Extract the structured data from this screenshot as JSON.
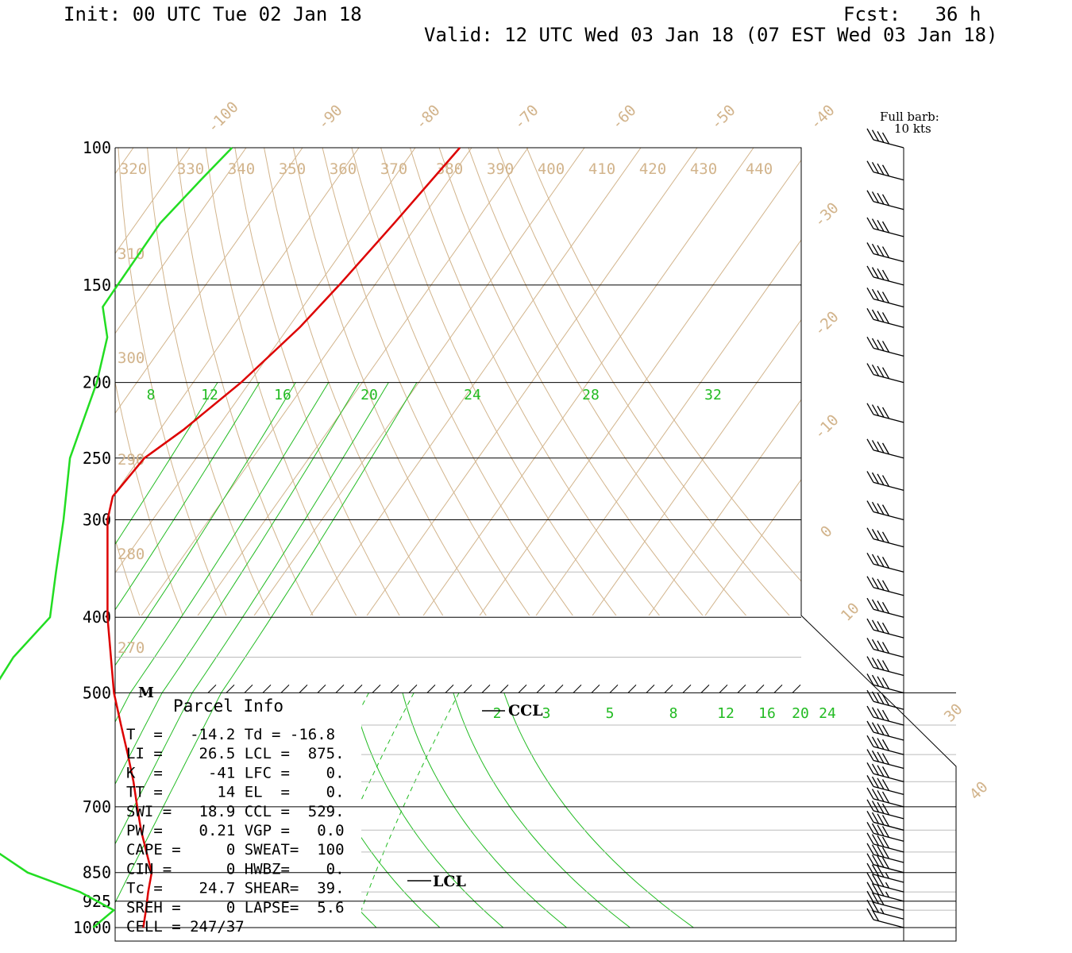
{
  "header": {
    "init": "Init: 00 UTC Tue 02 Jan 18",
    "fcst": "Fcst:   36 h",
    "valid": "Valid: 12 UTC Wed 03 Jan 18 (07 EST Wed 03 Jan 18)"
  },
  "barb_key": {
    "line1": "Full barb:",
    "line2": "10 kts"
  },
  "colors": {
    "temperature": "#dd0000",
    "dewpoint": "#22dd22",
    "grid": "#d2b48c",
    "mixing": "#22bb22"
  },
  "labels": {
    "pressure": [
      "100",
      "150",
      "200",
      "250",
      "300",
      "400",
      "500",
      "700",
      "850",
      "925",
      "1000"
    ],
    "isotherms_top": [
      "-100",
      "-90",
      "-80",
      "-70",
      "-60",
      "-50",
      "-40"
    ],
    "isotherms_right": [
      "-30",
      "-20",
      "-10",
      "0",
      "10",
      "30",
      "40"
    ],
    "theta_top": [
      "320",
      "330",
      "340",
      "350",
      "360",
      "370",
      "380",
      "390",
      "400",
      "410",
      "420",
      "430",
      "440"
    ],
    "theta_left": [
      "310",
      "300",
      "290",
      "280",
      "270"
    ],
    "mix_upper": [
      "8",
      "12",
      "16",
      "20",
      "24",
      "28",
      "32"
    ],
    "mix_lower": [
      "2",
      "3",
      "5",
      "8",
      "12",
      "16",
      "20",
      "24"
    ],
    "ccl": "CCL",
    "lcl": "LCL",
    "m": "M"
  },
  "parcel_info": {
    "title": "Parcel Info",
    "rows": [
      "T  =   -14.2 Td = -16.8",
      "LI =    26.5 LCL =  875.",
      "K  =     -41 LFC =    0.",
      "TT =      14 EL  =    0.",
      "SWI =   18.9 CCL =  529.",
      "PW =    0.21 VGP =   0.0",
      "CAPE =     0 SWEAT=  100",
      "CIN =      0 HWBZ=    0.",
      "Tc =    24.7 SHEAR=  39.",
      "SREH =     0 LAPSE=  5.6",
      "CELL = 247/37"
    ]
  },
  "chart_data": {
    "type": "line",
    "title": "",
    "y_axis": "pressure (mb)",
    "ylim": [
      1000,
      100
    ],
    "series": [
      {
        "name": "Temperature",
        "points": [
          {
            "p": 1000,
            "t": -10.6
          },
          {
            "p": 950,
            "t": -12.3
          },
          {
            "p": 900,
            "t": -14.2
          },
          {
            "p": 850,
            "t": -16.0
          },
          {
            "p": 800,
            "t": -19.5
          },
          {
            "p": 750,
            "t": -23.2
          },
          {
            "p": 700,
            "t": -26.8
          },
          {
            "p": 650,
            "t": -30.6
          },
          {
            "p": 600,
            "t": -35.0
          },
          {
            "p": 550,
            "t": -39.9
          },
          {
            "p": 500,
            "t": -45.2
          },
          {
            "p": 400,
            "t": -55.8
          },
          {
            "p": 300,
            "t": -68.0
          },
          {
            "p": 280,
            "t": -70.0
          },
          {
            "p": 250,
            "t": -69.2
          },
          {
            "p": 230,
            "t": -65.8
          },
          {
            "p": 200,
            "t": -61.5
          },
          {
            "p": 170,
            "t": -58.0
          },
          {
            "p": 150,
            "t": -56.3
          },
          {
            "p": 125,
            "t": -54.3
          },
          {
            "p": 100,
            "t": -52.1
          }
        ]
      },
      {
        "name": "Dewpoint",
        "points": [
          {
            "p": 1000,
            "t": -19.5
          },
          {
            "p": 950,
            "t": -18.0
          },
          {
            "p": 900,
            "t": -26.3
          },
          {
            "p": 850,
            "t": -38.0
          },
          {
            "p": 800,
            "t": -46.0
          },
          {
            "p": 750,
            "t": -50.5
          },
          {
            "p": 700,
            "t": -54.7
          },
          {
            "p": 650,
            "t": -58.5
          },
          {
            "p": 600,
            "t": -61.6
          },
          {
            "p": 550,
            "t": -64.5
          },
          {
            "p": 500,
            "t": -67.0
          },
          {
            "p": 450,
            "t": -67.5
          },
          {
            "p": 400,
            "t": -66.0
          },
          {
            "p": 350,
            "t": -70.6
          },
          {
            "p": 300,
            "t": -75.8
          },
          {
            "p": 250,
            "t": -82.4
          },
          {
            "p": 200,
            "t": -87.1
          },
          {
            "p": 175,
            "t": -90.9
          },
          {
            "p": 160,
            "t": -95.5
          },
          {
            "p": 150,
            "t": -95.6
          },
          {
            "p": 125,
            "t": -95.8
          },
          {
            "p": 110,
            "t": -94.0
          },
          {
            "p": 100,
            "t": -92.5
          }
        ]
      }
    ],
    "wind_barbs": {
      "unit": "kts",
      "barbs": [
        {
          "p": 1000,
          "speed": 20
        },
        {
          "p": 975,
          "speed": 25
        },
        {
          "p": 950,
          "speed": 30
        },
        {
          "p": 925,
          "speed": 35
        },
        {
          "p": 900,
          "speed": 35
        },
        {
          "p": 875,
          "speed": 35
        },
        {
          "p": 850,
          "speed": 40
        },
        {
          "p": 825,
          "speed": 40
        },
        {
          "p": 800,
          "speed": 40
        },
        {
          "p": 775,
          "speed": 40
        },
        {
          "p": 750,
          "speed": 40
        },
        {
          "p": 725,
          "speed": 40
        },
        {
          "p": 700,
          "speed": 40
        },
        {
          "p": 675,
          "speed": 40
        },
        {
          "p": 650,
          "speed": 40
        },
        {
          "p": 625,
          "speed": 40
        },
        {
          "p": 600,
          "speed": 40
        },
        {
          "p": 575,
          "speed": 40
        },
        {
          "p": 550,
          "speed": 40
        },
        {
          "p": 525,
          "speed": 40
        },
        {
          "p": 500,
          "speed": 40
        },
        {
          "p": 475,
          "speed": 40
        },
        {
          "p": 450,
          "speed": 40
        },
        {
          "p": 425,
          "speed": 40
        },
        {
          "p": 400,
          "speed": 40
        },
        {
          "p": 375,
          "speed": 40
        },
        {
          "p": 350,
          "speed": 40
        },
        {
          "p": 325,
          "speed": 40
        },
        {
          "p": 300,
          "speed": 40
        },
        {
          "p": 275,
          "speed": 40
        },
        {
          "p": 250,
          "speed": 40
        },
        {
          "p": 225,
          "speed": 40
        },
        {
          "p": 200,
          "speed": 40
        },
        {
          "p": 185,
          "speed": 40
        },
        {
          "p": 170,
          "speed": 40
        },
        {
          "p": 160,
          "speed": 40
        },
        {
          "p": 150,
          "speed": 40
        },
        {
          "p": 140,
          "speed": 40
        },
        {
          "p": 130,
          "speed": 40
        },
        {
          "p": 120,
          "speed": 40
        },
        {
          "p": 110,
          "speed": 40
        },
        {
          "p": 100,
          "speed": 40
        }
      ]
    }
  }
}
